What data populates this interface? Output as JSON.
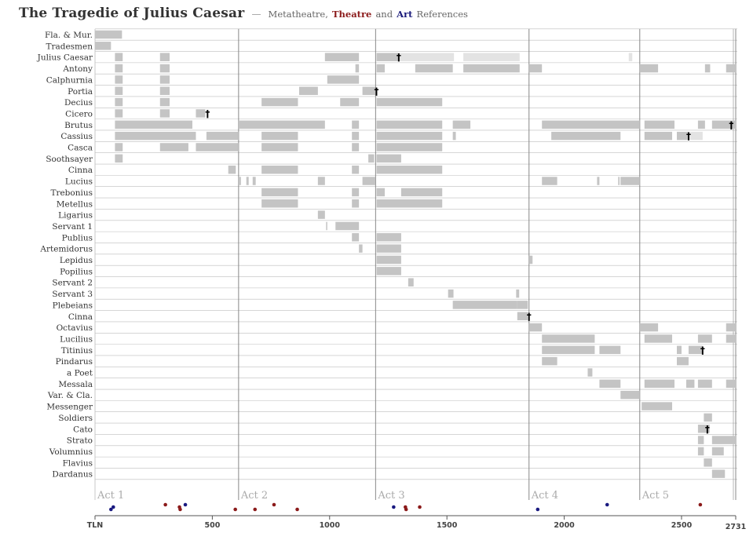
{
  "header": {
    "title": "The Tragedie of Julius Caesar",
    "separator": "—",
    "subtitle_1": "Metatheatre,",
    "subtitle_theatre": "Theatre",
    "subtitle_and": "and",
    "subtitle_art": "Art",
    "subtitle_2": "References"
  },
  "chart_data": {
    "type": "timeline",
    "x_axis": {
      "label": "TLN",
      "min": 0,
      "max": 2731,
      "ticks": [
        500,
        1000,
        1500,
        2000,
        2500
      ],
      "end_label": "2731"
    },
    "acts": [
      {
        "label": "Act 1",
        "start": 0
      },
      {
        "label": "Act 2",
        "start": 612
      },
      {
        "label": "Act 3",
        "start": 1196
      },
      {
        "label": "Act 4",
        "start": 1850
      },
      {
        "label": "Act 5",
        "start": 2322
      }
    ],
    "colors": {
      "presence": "#c4c4c4",
      "light": "#e3e3e3",
      "theatre": "#8b1a1a",
      "art": "#1a1a80",
      "grid": "#bdbdbd",
      "act_line": "#888888"
    },
    "characters": [
      {
        "name": "Fla. & Mur.",
        "segments": [
          [
            0,
            115
          ]
        ]
      },
      {
        "name": "Tradesmen",
        "segments": [
          [
            0,
            68
          ]
        ]
      },
      {
        "name": "Julius Caesar",
        "segments": [
          [
            85,
            118
          ],
          [
            277,
            318
          ],
          [
            980,
            1125
          ],
          [
            1200,
            1295
          ],
          [
            1295,
            1530,
            "light"
          ],
          [
            1570,
            1810,
            "light"
          ],
          [
            2275,
            2290,
            "light"
          ]
        ],
        "death": 1295
      },
      {
        "name": "Antony",
        "segments": [
          [
            85,
            118
          ],
          [
            277,
            318
          ],
          [
            1110,
            1125
          ],
          [
            1200,
            1235
          ],
          [
            1365,
            1525
          ],
          [
            1570,
            1810
          ],
          [
            1850,
            1905
          ],
          [
            2322,
            2400
          ],
          [
            2600,
            2622
          ],
          [
            2690,
            2731
          ]
        ]
      },
      {
        "name": "Calphurnia",
        "segments": [
          [
            85,
            118
          ],
          [
            277,
            318
          ],
          [
            990,
            1125
          ]
        ]
      },
      {
        "name": "Portia",
        "segments": [
          [
            85,
            118
          ],
          [
            277,
            318
          ],
          [
            870,
            950
          ],
          [
            1140,
            1195
          ]
        ],
        "death": 1200
      },
      {
        "name": "Decius",
        "segments": [
          [
            85,
            118
          ],
          [
            277,
            318
          ],
          [
            710,
            865
          ],
          [
            1045,
            1125
          ],
          [
            1200,
            1480
          ]
        ]
      },
      {
        "name": "Cicero",
        "segments": [
          [
            85,
            118
          ],
          [
            277,
            318
          ],
          [
            430,
            470
          ]
        ],
        "death": 480
      },
      {
        "name": "Brutus",
        "segments": [
          [
            85,
            415
          ],
          [
            612,
            980
          ],
          [
            1095,
            1125
          ],
          [
            1200,
            1480
          ],
          [
            1525,
            1600
          ],
          [
            1905,
            2322
          ],
          [
            2342,
            2470
          ],
          [
            2570,
            2600
          ],
          [
            2630,
            2731
          ]
        ],
        "death": 2712
      },
      {
        "name": "Cassius",
        "segments": [
          [
            85,
            430
          ],
          [
            475,
            612
          ],
          [
            710,
            865
          ],
          [
            1095,
            1125
          ],
          [
            1200,
            1480
          ],
          [
            1525,
            1538
          ],
          [
            1945,
            2240
          ],
          [
            2342,
            2460
          ],
          [
            2480,
            2530
          ],
          [
            2530,
            2590,
            "light"
          ]
        ],
        "death": 2530
      },
      {
        "name": "Casca",
        "segments": [
          [
            85,
            118
          ],
          [
            277,
            398
          ],
          [
            430,
            612
          ],
          [
            710,
            865
          ],
          [
            1095,
            1125
          ],
          [
            1200,
            1480
          ]
        ]
      },
      {
        "name": "Soothsayer",
        "segments": [
          [
            85,
            118
          ],
          [
            1165,
            1190
          ],
          [
            1200,
            1305
          ]
        ]
      },
      {
        "name": "Cinna",
        "segments": [
          [
            568,
            600
          ],
          [
            710,
            865
          ],
          [
            1095,
            1125
          ],
          [
            1200,
            1480
          ]
        ]
      },
      {
        "name": "Lucius",
        "segments": [
          [
            612,
            622
          ],
          [
            645,
            655
          ],
          [
            672,
            685
          ],
          [
            950,
            980
          ],
          [
            1140,
            1195
          ],
          [
            1905,
            1970
          ],
          [
            2140,
            2150
          ],
          [
            2230,
            2236
          ],
          [
            2240,
            2322
          ]
        ]
      },
      {
        "name": "Trebonius",
        "segments": [
          [
            710,
            865
          ],
          [
            1095,
            1125
          ],
          [
            1200,
            1235
          ],
          [
            1305,
            1480
          ]
        ]
      },
      {
        "name": "Metellus",
        "segments": [
          [
            710,
            865
          ],
          [
            1095,
            1125
          ],
          [
            1200,
            1480
          ]
        ]
      },
      {
        "name": "Ligarius",
        "segments": [
          [
            950,
            980
          ]
        ]
      },
      {
        "name": "Servant 1",
        "segments": [
          [
            985,
            990
          ],
          [
            1025,
            1125
          ]
        ]
      },
      {
        "name": "Publius",
        "segments": [
          [
            1095,
            1125
          ],
          [
            1200,
            1305
          ]
        ]
      },
      {
        "name": "Artemidorus",
        "segments": [
          [
            1125,
            1140
          ],
          [
            1200,
            1305
          ]
        ]
      },
      {
        "name": "Lepidus",
        "segments": [
          [
            1200,
            1305
          ],
          [
            1850,
            1865
          ]
        ]
      },
      {
        "name": "Popilius",
        "segments": [
          [
            1200,
            1305
          ]
        ]
      },
      {
        "name": "Servant 2",
        "segments": [
          [
            1335,
            1358
          ]
        ]
      },
      {
        "name": "Servant 3",
        "segments": [
          [
            1505,
            1528
          ],
          [
            1795,
            1808
          ]
        ]
      },
      {
        "name": "Plebeians",
        "segments": [
          [
            1525,
            1800
          ],
          [
            1800,
            1845
          ]
        ]
      },
      {
        "name": "Cinna",
        "segments": [
          [
            1800,
            1845
          ]
        ],
        "death": 1850
      },
      {
        "name": "Octavius",
        "segments": [
          [
            1850,
            1905
          ],
          [
            2322,
            2400
          ],
          [
            2690,
            2731
          ]
        ]
      },
      {
        "name": "Lucilius",
        "segments": [
          [
            1905,
            2130
          ],
          [
            2342,
            2460
          ],
          [
            2570,
            2630
          ],
          [
            2690,
            2731
          ]
        ]
      },
      {
        "name": "Titinius",
        "segments": [
          [
            1905,
            2130
          ],
          [
            2150,
            2240
          ],
          [
            2480,
            2500
          ],
          [
            2530,
            2590
          ]
        ],
        "death": 2590
      },
      {
        "name": "Pindarus",
        "segments": [
          [
            1905,
            1970
          ],
          [
            2480,
            2530
          ]
        ]
      },
      {
        "name": "a Poet",
        "segments": [
          [
            2100,
            2120
          ]
        ]
      },
      {
        "name": "Messala",
        "segments": [
          [
            2150,
            2240
          ],
          [
            2342,
            2470
          ],
          [
            2520,
            2555
          ],
          [
            2570,
            2630
          ],
          [
            2690,
            2731
          ]
        ]
      },
      {
        "name": "Var. & Cla.",
        "segments": [
          [
            2240,
            2322
          ]
        ]
      },
      {
        "name": "Messenger",
        "segments": [
          [
            2330,
            2460
          ]
        ]
      },
      {
        "name": "Soldiers",
        "segments": [
          [
            2595,
            2630
          ]
        ]
      },
      {
        "name": "Cato",
        "segments": [
          [
            2570,
            2620
          ]
        ],
        "death": 2610
      },
      {
        "name": "Strato",
        "segments": [
          [
            2570,
            2595
          ],
          [
            2630,
            2731
          ]
        ]
      },
      {
        "name": "Volumnius",
        "segments": [
          [
            2570,
            2595
          ],
          [
            2630,
            2680
          ]
        ]
      },
      {
        "name": "Flavius",
        "segments": [
          [
            2595,
            2630
          ]
        ]
      },
      {
        "name": "Dardanus",
        "segments": [
          [
            2630,
            2685
          ]
        ]
      }
    ],
    "references": [
      {
        "tln": 68,
        "kind": "art",
        "level": 1
      },
      {
        "tln": 78,
        "kind": "art",
        "level": 0
      },
      {
        "tln": 300,
        "kind": "theatre",
        "level": -1
      },
      {
        "tln": 360,
        "kind": "theatre",
        "level": 0
      },
      {
        "tln": 363,
        "kind": "theatre",
        "level": 1
      },
      {
        "tln": 385,
        "kind": "art",
        "level": -1
      },
      {
        "tln": 598,
        "kind": "theatre",
        "level": 1
      },
      {
        "tln": 682,
        "kind": "theatre",
        "level": 1
      },
      {
        "tln": 763,
        "kind": "theatre",
        "level": -1
      },
      {
        "tln": 862,
        "kind": "theatre",
        "level": 1
      },
      {
        "tln": 1273,
        "kind": "art",
        "level": 0
      },
      {
        "tln": 1323,
        "kind": "theatre",
        "level": 0
      },
      {
        "tln": 1326,
        "kind": "theatre",
        "level": 1
      },
      {
        "tln": 1384,
        "kind": "theatre",
        "level": 0
      },
      {
        "tln": 1887,
        "kind": "art",
        "level": 1
      },
      {
        "tln": 2183,
        "kind": "art",
        "level": -1
      },
      {
        "tln": 2580,
        "kind": "theatre",
        "level": -1
      }
    ]
  }
}
